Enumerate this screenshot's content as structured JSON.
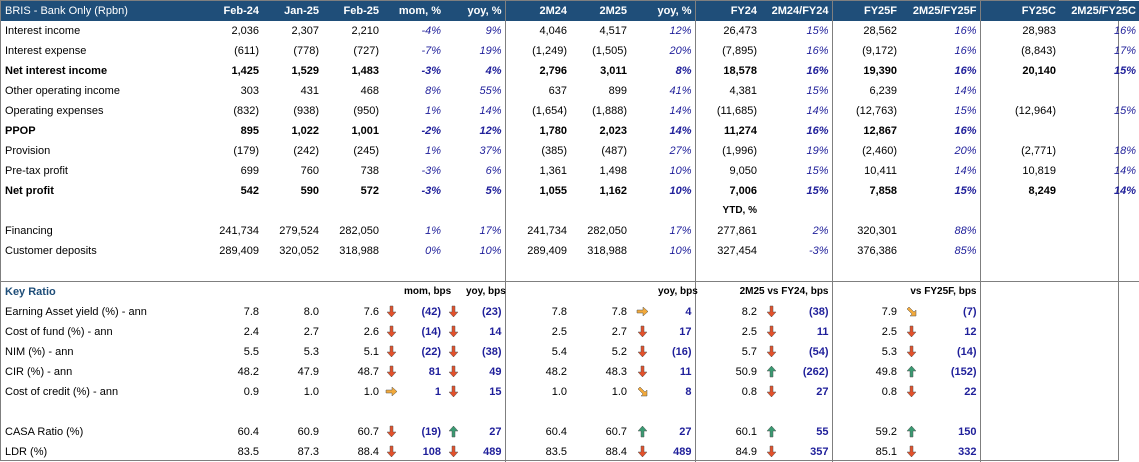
{
  "header": [
    "BRIS - Bank Only (Rpbn)",
    "Feb-24",
    "Jan-25",
    "Feb-25",
    "mom, %",
    "yoy, %",
    "2M24",
    "2M25",
    "yoy, %",
    "FY24",
    "2M24/FY24",
    "FY25F",
    "2M25/FY25F",
    "FY25C",
    "2M25/FY25C"
  ],
  "income_rows": [
    {
      "label": "Interest income",
      "bold": false,
      "v": [
        "2,036",
        "2,307",
        "2,210",
        "-4%",
        "9%",
        "4,046",
        "4,517",
        "12%",
        "26,473",
        "15%",
        "28,562",
        "16%",
        "28,983",
        "16%"
      ]
    },
    {
      "label": "Interest expense",
      "bold": false,
      "v": [
        "(611)",
        "(778)",
        "(727)",
        "-7%",
        "19%",
        "(1,249)",
        "(1,505)",
        "20%",
        "(7,895)",
        "16%",
        "(9,172)",
        "16%",
        "(8,843)",
        "17%"
      ]
    },
    {
      "label": "Net interest income",
      "bold": true,
      "v": [
        "1,425",
        "1,529",
        "1,483",
        "-3%",
        "4%",
        "2,796",
        "3,011",
        "8%",
        "18,578",
        "16%",
        "19,390",
        "16%",
        "20,140",
        "15%"
      ]
    },
    {
      "label": "Other operating income",
      "bold": false,
      "v": [
        "303",
        "431",
        "468",
        "8%",
        "55%",
        "637",
        "899",
        "41%",
        "4,381",
        "15%",
        "6,239",
        "14%",
        "",
        ""
      ]
    },
    {
      "label": "Operating expenses",
      "bold": false,
      "v": [
        "(832)",
        "(938)",
        "(950)",
        "1%",
        "14%",
        "(1,654)",
        "(1,888)",
        "14%",
        "(11,685)",
        "14%",
        "(12,763)",
        "15%",
        "(12,964)",
        "15%"
      ]
    },
    {
      "label": "PPOP",
      "bold": true,
      "v": [
        "895",
        "1,022",
        "1,001",
        "-2%",
        "12%",
        "1,780",
        "2,023",
        "14%",
        "11,274",
        "16%",
        "12,867",
        "16%",
        "",
        ""
      ]
    },
    {
      "label": "Provision",
      "bold": false,
      "v": [
        "(179)",
        "(242)",
        "(245)",
        "1%",
        "37%",
        "(385)",
        "(487)",
        "27%",
        "(1,996)",
        "19%",
        "(2,460)",
        "20%",
        "(2,771)",
        "18%"
      ]
    },
    {
      "label": "Pre-tax profit",
      "bold": false,
      "v": [
        "699",
        "760",
        "738",
        "-3%",
        "6%",
        "1,361",
        "1,498",
        "10%",
        "9,050",
        "15%",
        "10,411",
        "14%",
        "10,819",
        "14%"
      ]
    },
    {
      "label": "Net profit",
      "bold": true,
      "v": [
        "542",
        "590",
        "572",
        "-3%",
        "5%",
        "1,055",
        "1,162",
        "10%",
        "7,006",
        "15%",
        "7,858",
        "15%",
        "8,249",
        "14%"
      ]
    }
  ],
  "ytd_label": "YTD, %",
  "balance_rows": [
    {
      "label": "Financing",
      "v": [
        "241,734",
        "279,524",
        "282,050",
        "1%",
        "17%",
        "241,734",
        "282,050",
        "17%",
        "277,861",
        "2%",
        "320,301",
        "88%",
        "",
        ""
      ]
    },
    {
      "label": "Customer deposits",
      "v": [
        "289,409",
        "320,052",
        "318,988",
        "0%",
        "10%",
        "289,409",
        "318,988",
        "10%",
        "327,454",
        "-3%",
        "376,386",
        "85%",
        "",
        ""
      ]
    }
  ],
  "key_ratio": {
    "title": "Key Ratio",
    "sub": {
      "mom": "mom, bps",
      "yoy": "yoy, bps",
      "yoy2": "yoy, bps",
      "vsfy24": "2M25 vs FY24, bps",
      "vsfy25f": "vs FY25F, bps"
    },
    "colors": {
      "down": "#e2512b",
      "up": "#3a9a72",
      "side": "#f2a93b"
    },
    "rows": [
      {
        "label": "Earning Asset yield (%) - ann",
        "feb24": "7.8",
        "jan25": "8.0",
        "feb25": "7.6",
        "a1": "down",
        "mom": "(42)",
        "a2": "down",
        "yoy": "(23)",
        "m24": "7.8",
        "m25": "7.8",
        "a3": "side-right",
        "yoy2": "4",
        "fy24": "8.2",
        "a4": "down",
        "vs24": "(38)",
        "fy25f": "7.9",
        "a5": "side-down",
        "vs25": "(7)"
      },
      {
        "label": "Cost of fund (%) - ann",
        "feb24": "2.4",
        "jan25": "2.7",
        "feb25": "2.6",
        "a1": "down",
        "mom": "(14)",
        "a2": "down",
        "yoy": "14",
        "m24": "2.5",
        "m25": "2.7",
        "a3": "down",
        "yoy2": "17",
        "fy24": "2.5",
        "a4": "down",
        "vs24": "11",
        "fy25f": "2.5",
        "a5": "down",
        "vs25": "12"
      },
      {
        "label": "NIM (%) - ann",
        "feb24": "5.5",
        "jan25": "5.3",
        "feb25": "5.1",
        "a1": "down",
        "mom": "(22)",
        "a2": "down",
        "yoy": "(38)",
        "m24": "5.4",
        "m25": "5.2",
        "a3": "down",
        "yoy2": "(16)",
        "fy24": "5.7",
        "a4": "down",
        "vs24": "(54)",
        "fy25f": "5.3",
        "a5": "down",
        "vs25": "(14)"
      },
      {
        "label": "CIR (%) - ann",
        "feb24": "48.2",
        "jan25": "47.9",
        "feb25": "48.7",
        "a1": "down",
        "mom": "81",
        "a2": "down",
        "yoy": "49",
        "m24": "48.2",
        "m25": "48.3",
        "a3": "down",
        "yoy2": "11",
        "fy24": "50.9",
        "a4": "up",
        "vs24": "(262)",
        "fy25f": "49.8",
        "a5": "up",
        "vs25": "(152)"
      },
      {
        "label": "Cost of credit (%) - ann",
        "feb24": "0.9",
        "jan25": "1.0",
        "feb25": "1.0",
        "a1": "side-right",
        "mom": "1",
        "a2": "down",
        "yoy": "15",
        "m24": "1.0",
        "m25": "1.0",
        "a3": "side-down",
        "yoy2": "8",
        "fy24": "0.8",
        "a4": "down",
        "vs24": "27",
        "fy25f": "0.8",
        "a5": "down",
        "vs25": "22"
      }
    ],
    "rows2": [
      {
        "label": "CASA Ratio (%)",
        "feb24": "60.4",
        "jan25": "60.9",
        "feb25": "60.7",
        "a1": "down",
        "mom": "(19)",
        "a2": "up",
        "yoy": "27",
        "m24": "60.4",
        "m25": "60.7",
        "a3": "up",
        "yoy2": "27",
        "fy24": "60.1",
        "a4": "up",
        "vs24": "55",
        "fy25f": "59.2",
        "a5": "up",
        "vs25": "150"
      },
      {
        "label": "LDR (%)",
        "feb24": "83.5",
        "jan25": "87.3",
        "feb25": "88.4",
        "a1": "down",
        "mom": "108",
        "a2": "down",
        "yoy": "489",
        "m24": "83.5",
        "m25": "88.4",
        "a3": "down",
        "yoy2": "489",
        "fy24": "84.9",
        "a4": "down",
        "vs24": "357",
        "fy25f": "85.1",
        "a5": "down",
        "vs25": "332"
      }
    ]
  }
}
